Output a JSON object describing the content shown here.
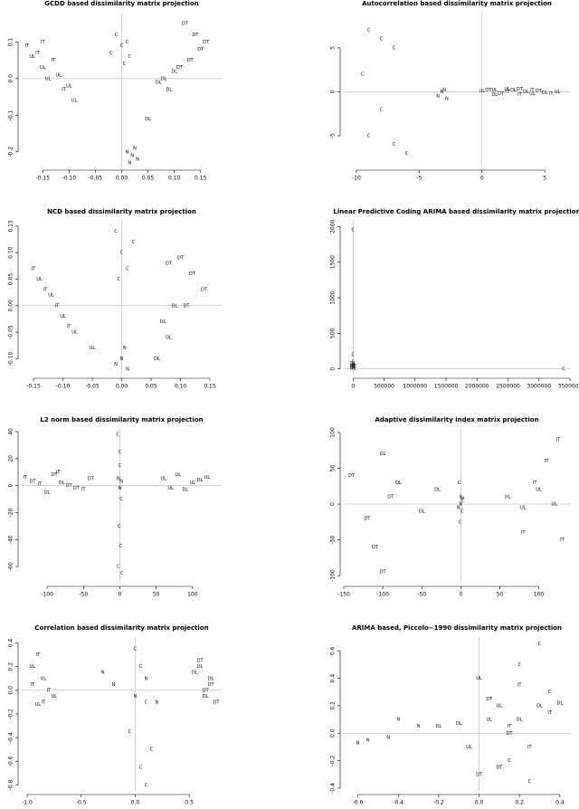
{
  "chart_data": [
    {
      "type": "scatter",
      "title": "GCDD based dissimilarity matrix projection",
      "zero_lines": true,
      "color": "#000000",
      "xlim": [
        -0.19,
        0.19
      ],
      "ylim": [
        -0.24,
        0.18
      ],
      "xticks": [
        {
          "value": -0.15,
          "label": "-0.15"
        },
        {
          "value": -0.1,
          "label": "-0.10"
        },
        {
          "value": -0.05,
          "label": "-0.05"
        },
        {
          "value": 0,
          "label": "0.00"
        },
        {
          "value": 0.05,
          "label": "0.05"
        },
        {
          "value": 0.1,
          "label": "0.10"
        },
        {
          "value": 0.15,
          "label": "0.15"
        }
      ],
      "yticks": [
        -0.2,
        -0.1,
        {
          "value": 0,
          "label": "0.0"
        },
        0.1
      ],
      "series": [
        {
          "name": "C",
          "x": [
            -0.01,
            0.0,
            0.01,
            -0.02,
            0.005,
            0.015
          ],
          "y": [
            0.12,
            0.09,
            0.1,
            0.07,
            0.04,
            0.06
          ]
        },
        {
          "name": "N",
          "x": [
            0.01,
            0.02,
            0.03,
            0.025,
            0.015
          ],
          "y": [
            -0.2,
            -0.21,
            -0.22,
            -0.19,
            -0.23
          ]
        },
        {
          "name": "UL",
          "x": [
            -0.17,
            -0.15,
            -0.12,
            -0.1,
            -0.09,
            -0.14
          ],
          "y": [
            0.06,
            0.03,
            0.01,
            -0.02,
            -0.06,
            0.0
          ]
        },
        {
          "name": "IT",
          "x": [
            -0.18,
            -0.16,
            -0.13,
            -0.11,
            -0.15
          ],
          "y": [
            0.09,
            0.07,
            0.05,
            -0.03,
            0.1
          ]
        },
        {
          "name": "DL",
          "x": [
            0.07,
            0.09,
            0.08,
            0.1,
            0.05
          ],
          "y": [
            -0.01,
            -0.03,
            0.0,
            0.02,
            -0.11
          ]
        },
        {
          "name": "DT",
          "x": [
            0.12,
            0.14,
            0.15,
            0.13,
            0.16,
            0.11
          ],
          "y": [
            0.15,
            0.12,
            0.08,
            0.05,
            0.1,
            0.03
          ]
        }
      ]
    },
    {
      "type": "scatter",
      "title": "Autocorrelation based dissimilarity matrix projection",
      "zero_lines": true,
      "color": "#000000",
      "xlim": [
        -11,
        7
      ],
      "ylim": [
        -8.5,
        9
      ],
      "xticks": [
        -10,
        -5,
        0,
        5
      ],
      "yticks": [
        -5,
        0,
        5
      ],
      "series": [
        {
          "name": "C",
          "x": [
            -9,
            -8,
            -7,
            -9.5,
            -8,
            -7,
            -9,
            -6
          ],
          "y": [
            7,
            6,
            5,
            2,
            -2,
            -6,
            -5,
            -7
          ]
        },
        {
          "name": "N",
          "x": [
            -3.5,
            -3,
            -2.8,
            -3.2
          ],
          "y": [
            -0.5,
            0.2,
            -0.8,
            0
          ]
        },
        {
          "name": "UL",
          "x": [
            0,
            2,
            4,
            6,
            1
          ],
          "y": [
            0.1,
            0.3,
            -0.2,
            0,
            0.2
          ]
        },
        {
          "name": "DL",
          "x": [
            1,
            2.5,
            3.5,
            5
          ],
          "y": [
            -0.3,
            0.2,
            0,
            -0.1
          ]
        },
        {
          "name": "DT",
          "x": [
            0.5,
            1.5,
            3,
            4.5
          ],
          "y": [
            0.2,
            -0.2,
            0.3,
            0.1
          ]
        },
        {
          "name": "IT",
          "x": [
            2,
            3,
            4,
            5.5
          ],
          "y": [
            0,
            -0.3,
            0.2,
            -0.2
          ]
        }
      ]
    },
    {
      "type": "scatter",
      "title": "NCD based dissimilarity matrix projection",
      "zero_lines": true,
      "color": "#000000",
      "xlim": [
        -0.17,
        0.17
      ],
      "ylim": [
        -0.13,
        0.16
      ],
      "xticks": [
        {
          "value": -0.15,
          "label": "-0.15"
        },
        {
          "value": -0.1,
          "label": "-0.10"
        },
        {
          "value": -0.05,
          "label": "-0.05"
        },
        {
          "value": 0,
          "label": "0.00"
        },
        {
          "value": 0.05,
          "label": "0.05"
        },
        {
          "value": 0.1,
          "label": "0.10"
        },
        {
          "value": 0.15,
          "label": "0.15"
        }
      ],
      "yticks": [
        {
          "value": -0.1,
          "label": "-0.10"
        },
        -0.05,
        {
          "value": 0,
          "label": "0.00"
        },
        0.05,
        {
          "value": 0.1,
          "label": "0.10"
        },
        0.15
      ],
      "series": [
        {
          "name": "C",
          "x": [
            -0.01,
            0.0,
            0.01,
            0.02,
            -0.005
          ],
          "y": [
            0.14,
            0.1,
            0.07,
            0.12,
            0.05
          ]
        },
        {
          "name": "N",
          "x": [
            0.0,
            0.01,
            -0.01,
            0.005
          ],
          "y": [
            -0.1,
            -0.12,
            -0.11,
            -0.08
          ]
        },
        {
          "name": "UL",
          "x": [
            -0.14,
            -0.12,
            -0.1,
            -0.08,
            -0.05
          ],
          "y": [
            0.05,
            0.02,
            -0.02,
            -0.05,
            -0.08
          ]
        },
        {
          "name": "IT",
          "x": [
            -0.15,
            -0.13,
            -0.11,
            -0.09
          ],
          "y": [
            0.07,
            0.03,
            0.0,
            -0.04
          ]
        },
        {
          "name": "DL",
          "x": [
            0.07,
            0.08,
            0.09,
            0.06
          ],
          "y": [
            -0.03,
            -0.06,
            0.0,
            -0.1
          ]
        },
        {
          "name": "DT",
          "x": [
            0.1,
            0.12,
            0.14,
            0.11,
            0.08
          ],
          "y": [
            0.09,
            0.06,
            0.03,
            0.0,
            0.08
          ]
        }
      ]
    },
    {
      "type": "scatter",
      "title": "Linear Predictive Coding ARIMA based dissimilarity matrix projection",
      "zero_lines": true,
      "color": "#000000",
      "xlim": [
        -150000,
        3500000
      ],
      "ylim": [
        -80,
        2080
      ],
      "xticks": [
        0,
        500000,
        1000000,
        1500000,
        2000000,
        2500000,
        3000000,
        3500000
      ],
      "yticks": [
        0,
        500,
        1000,
        1500,
        2000
      ],
      "series": [
        {
          "name": "C",
          "x": [
            0,
            0,
            3400000,
            0
          ],
          "y": [
            1950,
            200,
            0,
            100
          ]
        },
        {
          "name": "N",
          "x": [
            0,
            0
          ],
          "y": [
            30,
            60
          ]
        },
        {
          "name": "UL",
          "x": [
            0,
            0
          ],
          "y": [
            10,
            50
          ]
        },
        {
          "name": "DL",
          "x": [
            0
          ],
          "y": [
            80
          ]
        },
        {
          "name": "DT",
          "x": [
            0
          ],
          "y": [
            20
          ]
        },
        {
          "name": "IT",
          "x": [
            0
          ],
          "y": [
            40
          ]
        }
      ]
    },
    {
      "type": "scatter",
      "title": "L2 norm based dissimilarity matrix projection",
      "zero_lines": true,
      "color": "#000000",
      "xlim": [
        -135,
        140
      ],
      "ylim": [
        -72,
        42
      ],
      "xticks": [
        -100,
        -50,
        0,
        50,
        100
      ],
      "yticks": [
        -60,
        -40,
        -20,
        0,
        20,
        40
      ],
      "series": [
        {
          "name": "C",
          "x": [
            -3,
            0,
            2,
            -1,
            1,
            -2,
            3,
            0
          ],
          "y": [
            38,
            25,
            -10,
            -30,
            -45,
            -60,
            -65,
            15
          ]
        },
        {
          "name": "N",
          "x": [
            -2,
            0,
            2
          ],
          "y": [
            5,
            -2,
            3
          ]
        },
        {
          "name": "UL",
          "x": [
            60,
            80,
            100,
            120,
            70
          ],
          "y": [
            5,
            8,
            2,
            6,
            -2
          ]
        },
        {
          "name": "DL",
          "x": [
            90,
            110,
            -100,
            -80
          ],
          "y": [
            -3,
            4,
            -5,
            2
          ]
        },
        {
          "name": "DT",
          "x": [
            -120,
            -90,
            -60,
            -40,
            -70
          ],
          "y": [
            3,
            8,
            -2,
            5,
            0
          ]
        },
        {
          "name": "IT",
          "x": [
            -130,
            -110,
            -85,
            -50
          ],
          "y": [
            6,
            1,
            10,
            -3
          ]
        }
      ]
    },
    {
      "type": "scatter",
      "title": "Adaptive dissimilarity index matrix projection",
      "zero_lines": true,
      "color": "#000000",
      "xlim": [
        -150,
        140
      ],
      "ylim": [
        -110,
        105
      ],
      "xticks": [
        -150,
        -100,
        -50,
        0,
        50,
        100
      ],
      "yticks": [
        -100,
        -50,
        0,
        50,
        100
      ],
      "series": [
        {
          "name": "C",
          "x": [
            -2,
            0,
            2,
            -1,
            3
          ],
          "y": [
            30,
            10,
            -10,
            -25,
            5
          ]
        },
        {
          "name": "N",
          "x": [
            0,
            -3,
            2
          ],
          "y": [
            0,
            -5,
            8
          ]
        },
        {
          "name": "UL",
          "x": [
            60,
            80,
            100,
            120
          ],
          "y": [
            10,
            -5,
            20,
            0
          ]
        },
        {
          "name": "DL",
          "x": [
            -100,
            -80,
            -50,
            -30
          ],
          "y": [
            70,
            30,
            -10,
            20
          ]
        },
        {
          "name": "DT",
          "x": [
            -140,
            -120,
            -110,
            -100,
            -90
          ],
          "y": [
            40,
            -20,
            -60,
            -95,
            10
          ]
        },
        {
          "name": "IT",
          "x": [
            80,
            110,
            125,
            130,
            95
          ],
          "y": [
            -40,
            60,
            90,
            -50,
            30
          ]
        }
      ]
    },
    {
      "type": "scatter",
      "title": "Correlation based dissimilarity matrix projection",
      "zero_lines": true,
      "color": "#000000",
      "xlim": [
        -1.05,
        0.8
      ],
      "ylim": [
        -0.85,
        0.45
      ],
      "xticks": [
        {
          "value": -1,
          "label": "-1.0"
        },
        -0.5,
        {
          "value": 0,
          "label": "0.0"
        },
        0.5
      ],
      "yticks": [
        -0.8,
        -0.6,
        -0.4,
        -0.2,
        {
          "value": 0,
          "label": "0.0"
        },
        0.2,
        0.4
      ],
      "series": [
        {
          "name": "C",
          "x": [
            0.0,
            0.05,
            0.1,
            -0.05,
            0.15,
            0.05,
            0.1
          ],
          "y": [
            0.35,
            0.2,
            -0.1,
            -0.35,
            -0.5,
            -0.65,
            -0.8
          ]
        },
        {
          "name": "N",
          "x": [
            -0.3,
            -0.2,
            0.0,
            0.1,
            0.2
          ],
          "y": [
            0.15,
            0.05,
            -0.05,
            0.1,
            -0.1
          ]
        },
        {
          "name": "UL",
          "x": [
            -0.95,
            -0.85,
            -0.75,
            -0.9
          ],
          "y": [
            0.2,
            0.1,
            -0.05,
            -0.12
          ]
        },
        {
          "name": "IT",
          "x": [
            -0.9,
            -0.8,
            -0.95,
            -0.85
          ],
          "y": [
            0.3,
            0.0,
            0.05,
            -0.1
          ]
        },
        {
          "name": "DL",
          "x": [
            0.6,
            0.7,
            0.65,
            0.55
          ],
          "y": [
            0.2,
            0.1,
            -0.05,
            0.15
          ]
        },
        {
          "name": "DT",
          "x": [
            0.6,
            0.7,
            0.75,
            0.65
          ],
          "y": [
            0.25,
            0.05,
            -0.1,
            0.0
          ]
        }
      ]
    },
    {
      "type": "scatter",
      "title": "ARIMA based, Piccolo−1990 dissimilarity matrix projection",
      "zero_lines": true,
      "color": "#000000",
      "xlim": [
        -0.67,
        0.45
      ],
      "ylim": [
        -0.42,
        0.7
      ],
      "xticks": [
        -0.6,
        -0.4,
        -0.2,
        {
          "value": 0,
          "label": "0.0"
        },
        0.2,
        0.4
      ],
      "yticks": [
        -0.4,
        -0.2,
        {
          "value": 0,
          "label": "0.0"
        },
        0.2,
        0.4,
        0.6
      ],
      "series": [
        {
          "name": "C",
          "x": [
            0.2,
            0.3,
            0.35,
            0.15,
            0.25
          ],
          "y": [
            0.5,
            0.65,
            0.3,
            -0.2,
            -0.35
          ]
        },
        {
          "name": "N",
          "x": [
            -0.6,
            -0.55,
            -0.45,
            -0.4,
            -0.3
          ],
          "y": [
            -0.07,
            -0.05,
            -0.03,
            0.1,
            0.05
          ]
        },
        {
          "name": "UL",
          "x": [
            0.0,
            0.05,
            -0.05,
            0.1
          ],
          "y": [
            0.4,
            0.1,
            -0.1,
            0.2
          ]
        },
        {
          "name": "DL",
          "x": [
            -0.2,
            -0.1,
            0.2,
            0.3,
            0.4
          ],
          "y": [
            0.05,
            0.07,
            0.1,
            0.2,
            0.22
          ]
        },
        {
          "name": "DT",
          "x": [
            0.05,
            0.15,
            0.1,
            0.0
          ],
          "y": [
            0.25,
            0.0,
            -0.25,
            -0.3
          ]
        },
        {
          "name": "IT",
          "x": [
            0.2,
            0.35,
            0.15,
            0.25
          ],
          "y": [
            0.35,
            0.15,
            0.05,
            -0.1
          ]
        }
      ]
    }
  ]
}
